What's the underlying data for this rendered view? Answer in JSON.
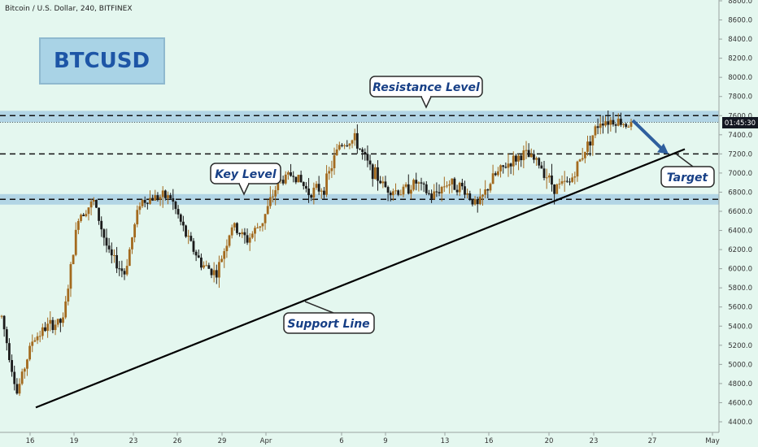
{
  "header": {
    "symbol_line": "Bitcoin / U.S. Dollar, 240, BITFINEX"
  },
  "colors": {
    "background": "#e4f7ef",
    "up_candle": "#a36a1e",
    "down_candle": "#1b1b1b",
    "zone_fill": "#a9cfe3",
    "title_box_fill": "#a9d3e6",
    "title_text": "#1d55a6",
    "callout_text": "#173f86",
    "arrow": "#2f5f9e",
    "price_tag": "#131722"
  },
  "chart_data": {
    "type": "candlestick",
    "title": "BTCUSD",
    "xlabel": "",
    "ylabel": "",
    "ylim": [
      4400,
      8800
    ],
    "y_ticks": [
      "4400.0",
      "4600.0",
      "4800.0",
      "5000.0",
      "5200.0",
      "5400.0",
      "5600.0",
      "5800.0",
      "6000.0",
      "6200.0",
      "6400.0",
      "6600.0",
      "6800.0",
      "7000.0",
      "7200.0",
      "7400.0",
      "7600.0",
      "7800.0",
      "8000.0",
      "8200.0",
      "8400.0",
      "8600.0",
      "8800.0"
    ],
    "x_ticks": [
      "16",
      "19",
      "23",
      "26",
      "29",
      "Apr",
      "6",
      "9",
      "13",
      "16",
      "20",
      "23",
      "27",
      "May"
    ],
    "current_price_label": "01:45:30",
    "grid": false,
    "series_ohlc_close_path": [
      {
        "d": "16",
        "c": 5500
      },
      {
        "d": "16",
        "c": 4700
      },
      {
        "d": "17",
        "c": 5250
      },
      {
        "d": "18",
        "c": 5400
      },
      {
        "d": "19",
        "c": 5450
      },
      {
        "d": "20",
        "c": 6550
      },
      {
        "d": "21",
        "c": 6700
      },
      {
        "d": "22",
        "c": 6150
      },
      {
        "d": "23",
        "c": 5950
      },
      {
        "d": "24",
        "c": 6700
      },
      {
        "d": "25",
        "c": 6750
      },
      {
        "d": "26",
        "c": 6750
      },
      {
        "d": "27",
        "c": 6350
      },
      {
        "d": "28",
        "c": 6050
      },
      {
        "d": "29",
        "c": 5950
      },
      {
        "d": "30",
        "c": 6450
      },
      {
        "d": "31",
        "c": 6300
      },
      {
        "d": "Apr",
        "c": 6500
      },
      {
        "d": "2",
        "c": 6900
      },
      {
        "d": "3",
        "c": 7000
      },
      {
        "d": "4",
        "c": 6800
      },
      {
        "d": "5",
        "c": 6850
      },
      {
        "d": "6",
        "c": 7300
      },
      {
        "d": "7",
        "c": 7350
      },
      {
        "d": "8",
        "c": 7050
      },
      {
        "d": "9",
        "c": 6850
      },
      {
        "d": "10",
        "c": 6800
      },
      {
        "d": "11",
        "c": 6900
      },
      {
        "d": "12",
        "c": 6750
      },
      {
        "d": "13",
        "c": 6900
      },
      {
        "d": "14",
        "c": 6850
      },
      {
        "d": "15",
        "c": 6650
      },
      {
        "d": "16",
        "c": 6950
      },
      {
        "d": "17",
        "c": 7100
      },
      {
        "d": "18",
        "c": 7200
      },
      {
        "d": "19",
        "c": 7100
      },
      {
        "d": "20",
        "c": 6850
      },
      {
        "d": "21",
        "c": 6900
      },
      {
        "d": "22",
        "c": 7250
      },
      {
        "d": "23",
        "c": 7550
      },
      {
        "d": "24",
        "c": 7550
      },
      {
        "d": "25",
        "c": 7500
      }
    ],
    "levels": [
      {
        "name": "Resistance Level",
        "value": 7600
      },
      {
        "name": "Key Level",
        "value": 6725
      },
      {
        "name": "",
        "value": 7200
      }
    ],
    "support_line": {
      "name": "Support Line",
      "from": {
        "d": "16",
        "v": 4550
      },
      "to": {
        "d": "28",
        "v": 7250
      }
    },
    "projection": {
      "name": "Target",
      "from": 7550,
      "to": 7200
    }
  }
}
